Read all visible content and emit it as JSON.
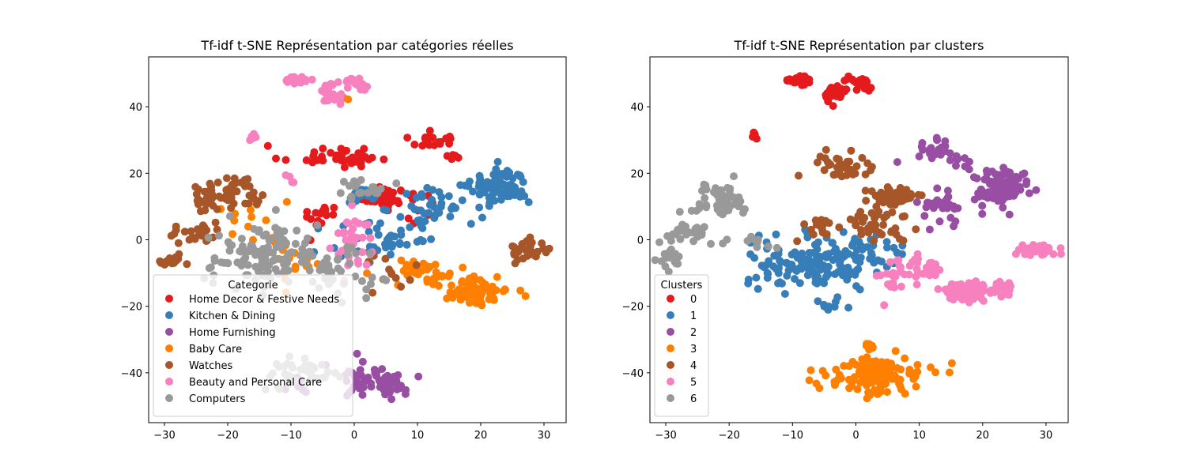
{
  "chart_data": [
    {
      "type": "scatter",
      "title": "Tf-idf t-SNE Représentation par catégories réelles",
      "xlabel": "",
      "ylabel": "",
      "xlim": [
        -32.5,
        33.5
      ],
      "ylim": [
        -55,
        55
      ],
      "xticks": [
        "−30",
        "−20",
        "−10",
        "0",
        "10",
        "20",
        "30"
      ],
      "yticks": [
        "−40",
        "−20",
        "0",
        "20",
        "40"
      ],
      "grid": false,
      "legend": {
        "title": "Categorie",
        "placement": "lower-left",
        "entries": [
          "Home Decor & Festive Needs",
          "Kitchen & Dining",
          "Home Furnishing",
          "Baby Care",
          "Watches",
          "Beauty and Personal Care",
          "Computers"
        ]
      },
      "series": [
        {
          "name": "Home Decor & Festive Needs",
          "color": "#e41a1c",
          "clusters": [
            [
              -3,
              25,
              8,
              3,
              40
            ],
            [
              12,
              30,
              3,
              2,
              20
            ],
            [
              16,
              25,
              1,
              1,
              8
            ],
            [
              4,
              13,
              3,
              2,
              80
            ],
            [
              -5,
              7,
              3,
              5,
              15
            ],
            [
              10,
              10,
              3,
              5,
              10
            ]
          ]
        },
        {
          "name": "Kitchen & Dining",
          "color": "#377eb8",
          "clusters": [
            [
              23,
              16,
              4,
              5,
              90
            ],
            [
              13,
              10,
              6,
              6,
              40
            ],
            [
              5,
              0,
              8,
              8,
              40
            ],
            [
              1,
              13,
              3,
              2,
              20
            ]
          ]
        },
        {
          "name": "Home Furnishing",
          "color": "#984ea3",
          "clusters": [
            [
              4,
              -42,
              6,
              5,
              60
            ],
            [
              -9,
              -45,
              2,
              3,
              8
            ]
          ]
        },
        {
          "name": "Baby Care",
          "color": "#ff7f00",
          "clusters": [
            [
              19,
              -15,
              5,
              4,
              90
            ],
            [
              10,
              -10,
              5,
              4,
              30
            ],
            [
              -10,
              -5,
              7,
              6,
              20
            ],
            [
              -17,
              8,
              4,
              6,
              10
            ],
            [
              -1,
              44,
              1,
              2,
              2
            ]
          ]
        },
        {
          "name": "Watches",
          "color": "#a65628",
          "clusters": [
            [
              -23,
              13,
              3,
              4,
              30
            ],
            [
              -18,
              15,
              3,
              4,
              25
            ],
            [
              -25,
              1,
              4,
              3,
              25
            ],
            [
              -29,
              -6,
              2,
              2,
              15
            ],
            [
              28,
              -3,
              3,
              3,
              30
            ],
            [
              5,
              -10,
              4,
              6,
              12
            ]
          ]
        },
        {
          "name": "Beauty and Personal Care",
          "color": "#f781bf",
          "clusters": [
            [
              -9,
              48,
              1.5,
              1,
              40
            ],
            [
              -3.5,
              44,
              2,
              3,
              25
            ],
            [
              0,
              48,
              1.5,
              1,
              15
            ],
            [
              1,
              46,
              1,
              1,
              10
            ],
            [
              -16,
              31,
              0.6,
              1.5,
              6
            ],
            [
              0,
              0,
              3,
              8,
              35
            ],
            [
              -10,
              18,
              1,
              2,
              4
            ]
          ]
        },
        {
          "name": "Computers",
          "color": "#999999",
          "clusters": [
            [
              -14,
              -5,
              8,
              9,
              120
            ],
            [
              -3,
              -10,
              5,
              6,
              40
            ],
            [
              1,
              15,
              4,
              4,
              20
            ],
            [
              -8,
              -40,
              5,
              4,
              40
            ]
          ]
        }
      ]
    },
    {
      "type": "scatter",
      "title": "Tf-idf t-SNE Représentation par clusters",
      "xlabel": "",
      "ylabel": "",
      "xlim": [
        -32.5,
        33.5
      ],
      "ylim": [
        -55,
        55
      ],
      "xticks": [
        "−30",
        "−20",
        "−10",
        "0",
        "10",
        "20",
        "30"
      ],
      "yticks": [
        "−40",
        "−20",
        "0",
        "20",
        "40"
      ],
      "grid": false,
      "legend": {
        "title": "Clusters",
        "placement": "lower-left",
        "entries": [
          "0",
          "1",
          "2",
          "3",
          "4",
          "5",
          "6"
        ]
      },
      "series": [
        {
          "name": "0",
          "color": "#e41a1c",
          "clusters": [
            [
              -9,
              48,
              1.5,
              1,
              40
            ],
            [
              -3.5,
              44,
              2,
              3,
              25
            ],
            [
              0,
              48,
              1.5,
              1,
              15
            ],
            [
              1.5,
              46,
              1,
              1,
              10
            ],
            [
              -16,
              31,
              0.6,
              1.5,
              6
            ]
          ]
        },
        {
          "name": "1",
          "color": "#377eb8",
          "clusters": [
            [
              -7,
              -7,
              9,
              7,
              140
            ],
            [
              2,
              -5,
              5,
              6,
              40
            ],
            [
              -4,
              -20,
              3,
              1.5,
              10
            ]
          ]
        },
        {
          "name": "2",
          "color": "#984ea3",
          "clusters": [
            [
              23,
              16,
              4,
              5,
              90
            ],
            [
              13,
              28,
              3,
              3,
              20
            ],
            [
              14,
              10,
              4,
              5,
              30
            ],
            [
              17,
              24,
              2,
              2,
              10
            ]
          ]
        },
        {
          "name": "3",
          "color": "#ff7f00",
          "clusters": [
            [
              3,
              -41,
              7,
              5,
              120
            ],
            [
              2,
              -32,
              1,
              1,
              8
            ]
          ]
        },
        {
          "name": "4",
          "color": "#a65628",
          "clusters": [
            [
              6,
              13,
              3,
              2,
              100
            ],
            [
              -2,
              22,
              4,
              5,
              40
            ],
            [
              3,
              5,
              5,
              6,
              40
            ],
            [
              -6,
              4,
              3,
              5,
              15
            ]
          ]
        },
        {
          "name": "5",
          "color": "#f781bf",
          "clusters": [
            [
              18,
              -16,
              4,
              3,
              80
            ],
            [
              10,
              -9,
              4,
              4,
              30
            ],
            [
              28,
              -3,
              3,
              2,
              30
            ],
            [
              23,
              -15,
              2,
              2,
              20
            ],
            [
              6,
              -12,
              2,
              6,
              15
            ]
          ]
        },
        {
          "name": "6",
          "color": "#999999",
          "clusters": [
            [
              -22,
              12,
              5,
              5,
              50
            ],
            [
              -26,
              2,
              4,
              3,
              25
            ],
            [
              -29,
              -6,
              2,
              2,
              15
            ],
            [
              -16,
              0,
              3,
              2,
              10
            ]
          ]
        }
      ]
    }
  ]
}
